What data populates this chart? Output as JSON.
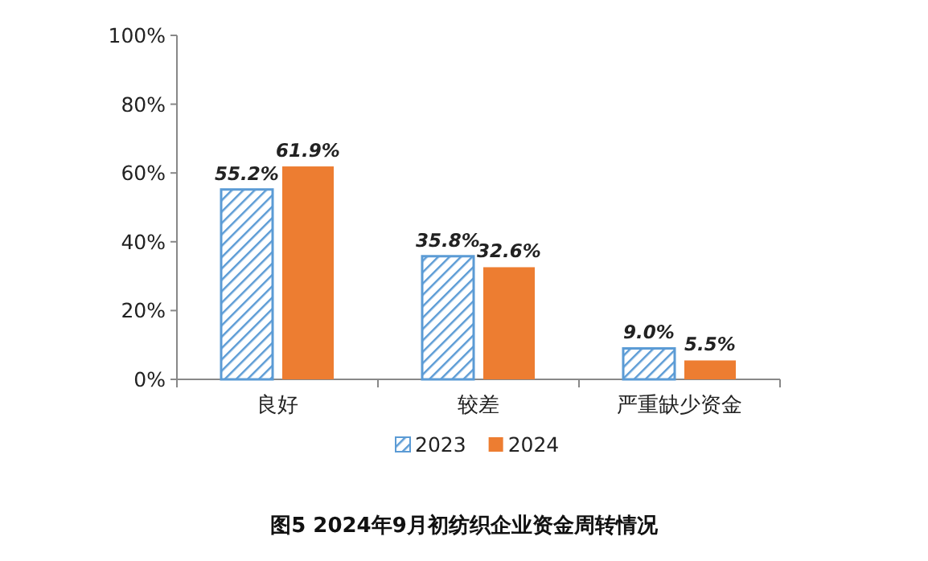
{
  "chart_data": {
    "type": "bar",
    "title": "图5  2024年9月初纺织企业资金周转情况",
    "categories": [
      "良好",
      "较差",
      "严重缺少资金"
    ],
    "series": [
      {
        "name": "2023",
        "color": "#5b9bd5",
        "values": [
          55.2,
          35.8,
          9.0
        ],
        "value_labels": [
          "55.2%",
          "35.8%",
          "9.0%"
        ]
      },
      {
        "name": "2024",
        "color": "#ed7d31",
        "values": [
          61.9,
          32.6,
          5.5
        ],
        "value_labels": [
          "61.9%",
          "32.6%",
          "5.5%"
        ]
      }
    ],
    "ylim": [
      0,
      100
    ],
    "yticks": [
      {
        "value": 0,
        "label": "0%"
      },
      {
        "value": 20,
        "label": "20%"
      },
      {
        "value": 40,
        "label": "40%"
      },
      {
        "value": 60,
        "label": "60%"
      },
      {
        "value": 80,
        "label": "80%"
      },
      {
        "value": 100,
        "label": "100%"
      }
    ],
    "grid": false,
    "legend": "bottom"
  }
}
